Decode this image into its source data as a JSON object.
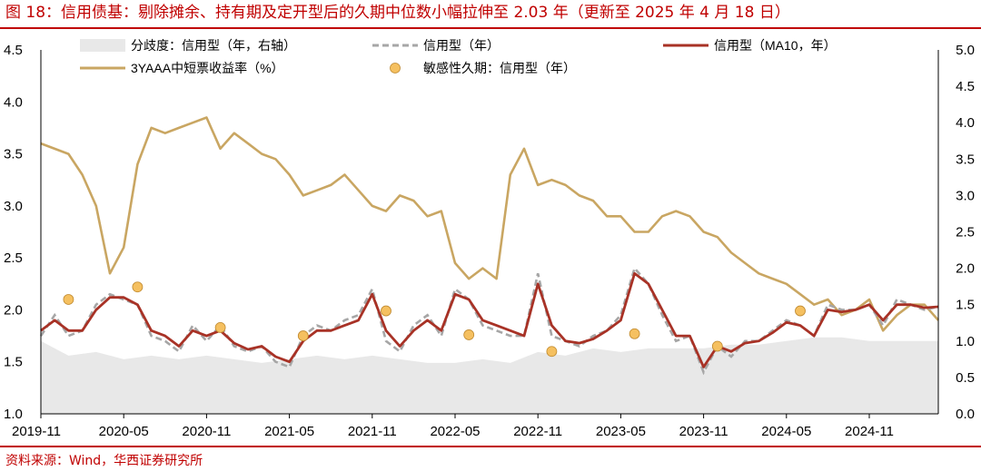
{
  "title": "图 18：信用债基：剔除摊余、持有期及定开型后的久期中位数小幅拉伸至 2.03 年（更新至 2025 年 4 月 18 日）",
  "source": "资料来源：Wind，华西证券研究所",
  "colors": {
    "title_red": "#c00000",
    "dispersion_fill": "#e8e8e8",
    "credit_dashed": "#a6a6a6",
    "credit_ma10": "#a83226",
    "yield_line": "#c9a662",
    "sensitivity_dot": "#f5c060"
  },
  "chart_data": {
    "type": "line",
    "x_ticks": [
      "2019-11",
      "2020-05",
      "2020-11",
      "2021-05",
      "2021-11",
      "2022-05",
      "2022-11",
      "2023-05",
      "2023-11",
      "2024-05",
      "2024-11"
    ],
    "x_range": [
      "2019-11",
      "2025-04"
    ],
    "ylim_left": [
      1.0,
      4.5
    ],
    "yticks_left": [
      "1.0",
      "1.5",
      "2.0",
      "2.5",
      "3.0",
      "3.5",
      "4.0",
      "4.5"
    ],
    "ylim_right": [
      0.0,
      5.0
    ],
    "yticks_right": [
      "0.0",
      "0.5",
      "1.0",
      "1.5",
      "2.0",
      "2.5",
      "3.0",
      "3.5",
      "4.0",
      "4.5",
      "5.0"
    ],
    "legend": [
      "分歧度：信用型（年，右轴）",
      "信用型（年）",
      "信用型（MA10，年）",
      "3YAAA中短票收益率（%）",
      "敏感性久期：信用型（年）"
    ],
    "series": [
      {
        "name": "3YAAA中短票收益率（%）",
        "axis": "left",
        "style": "line",
        "x": [
          "2019-11",
          "2020-01",
          "2020-02",
          "2020-03",
          "2020-04",
          "2020-05",
          "2020-06",
          "2020-07",
          "2020-08",
          "2020-09",
          "2020-10",
          "2020-11",
          "2020-12",
          "2021-01",
          "2021-02",
          "2021-03",
          "2021-04",
          "2021-05",
          "2021-06",
          "2021-07",
          "2021-08",
          "2021-09",
          "2021-10",
          "2021-11",
          "2021-12",
          "2022-01",
          "2022-02",
          "2022-03",
          "2022-04",
          "2022-05",
          "2022-06",
          "2022-07",
          "2022-08",
          "2022-09",
          "2022-10",
          "2022-11",
          "2022-12",
          "2023-01",
          "2023-02",
          "2023-03",
          "2023-04",
          "2023-05",
          "2023-06",
          "2023-07",
          "2023-08",
          "2023-09",
          "2023-10",
          "2023-11",
          "2023-12",
          "2024-01",
          "2024-02",
          "2024-03",
          "2024-04",
          "2024-05",
          "2024-06",
          "2024-07",
          "2024-08",
          "2024-09",
          "2024-10",
          "2024-11",
          "2024-12",
          "2025-01",
          "2025-02",
          "2025-03",
          "2025-04"
        ],
        "values": [
          3.6,
          3.5,
          3.3,
          3.0,
          2.35,
          2.6,
          3.4,
          3.75,
          3.7,
          3.75,
          3.8,
          3.85,
          3.55,
          3.7,
          3.6,
          3.5,
          3.45,
          3.3,
          3.1,
          3.15,
          3.2,
          3.3,
          3.15,
          3.0,
          2.95,
          3.1,
          3.05,
          2.9,
          2.95,
          2.45,
          2.3,
          2.4,
          2.3,
          3.3,
          3.55,
          3.2,
          3.25,
          3.2,
          3.1,
          3.05,
          2.9,
          2.9,
          2.75,
          2.75,
          2.9,
          2.95,
          2.9,
          2.75,
          2.7,
          2.55,
          2.45,
          2.35,
          2.3,
          2.25,
          2.15,
          2.05,
          2.1,
          1.95,
          2.0,
          2.1,
          1.8,
          1.95,
          2.05,
          2.05,
          1.9
        ]
      },
      {
        "name": "信用型（年）",
        "axis": "left",
        "style": "dashed",
        "x": [
          "2019-11",
          "2019-12",
          "2020-01",
          "2020-02",
          "2020-03",
          "2020-04",
          "2020-05",
          "2020-06",
          "2020-07",
          "2020-08",
          "2020-09",
          "2020-10",
          "2020-11",
          "2020-12",
          "2021-01",
          "2021-02",
          "2021-03",
          "2021-04",
          "2021-05",
          "2021-06",
          "2021-07",
          "2021-08",
          "2021-09",
          "2021-10",
          "2021-11",
          "2021-12",
          "2022-01",
          "2022-02",
          "2022-03",
          "2022-04",
          "2022-05",
          "2022-06",
          "2022-07",
          "2022-08",
          "2022-09",
          "2022-10",
          "2022-11",
          "2022-12",
          "2023-01",
          "2023-02",
          "2023-03",
          "2023-04",
          "2023-05",
          "2023-06",
          "2023-07",
          "2023-08",
          "2023-09",
          "2023-10",
          "2023-11",
          "2023-12",
          "2024-01",
          "2024-02",
          "2024-03",
          "2024-04",
          "2024-05",
          "2024-06",
          "2024-07",
          "2024-08",
          "2024-09",
          "2024-10",
          "2024-11",
          "2024-12",
          "2025-01",
          "2025-02",
          "2025-03",
          "2025-04"
        ],
        "values": [
          1.75,
          1.95,
          1.75,
          1.8,
          2.05,
          2.15,
          2.1,
          2.05,
          1.75,
          1.7,
          1.6,
          1.85,
          1.7,
          1.85,
          1.65,
          1.6,
          1.65,
          1.5,
          1.45,
          1.75,
          1.85,
          1.8,
          1.9,
          1.95,
          2.2,
          1.7,
          1.6,
          1.85,
          1.95,
          1.75,
          2.2,
          2.1,
          1.85,
          1.8,
          1.75,
          1.75,
          2.35,
          1.75,
          1.7,
          1.65,
          1.75,
          1.8,
          1.95,
          2.4,
          2.25,
          1.95,
          1.7,
          1.75,
          1.4,
          1.65,
          1.55,
          1.7,
          1.7,
          1.8,
          1.9,
          1.85,
          1.75,
          2.05,
          2.0,
          2.0,
          2.05,
          1.85,
          2.1,
          2.05,
          2.0,
          2.03
        ]
      },
      {
        "name": "信用型（MA10，年）",
        "axis": "left",
        "style": "line",
        "x": [
          "2019-11",
          "2019-12",
          "2020-01",
          "2020-02",
          "2020-03",
          "2020-04",
          "2020-05",
          "2020-06",
          "2020-07",
          "2020-08",
          "2020-09",
          "2020-10",
          "2020-11",
          "2020-12",
          "2021-01",
          "2021-02",
          "2021-03",
          "2021-04",
          "2021-05",
          "2021-06",
          "2021-07",
          "2021-08",
          "2021-09",
          "2021-10",
          "2021-11",
          "2021-12",
          "2022-01",
          "2022-02",
          "2022-03",
          "2022-04",
          "2022-05",
          "2022-06",
          "2022-07",
          "2022-08",
          "2022-09",
          "2022-10",
          "2022-11",
          "2022-12",
          "2023-01",
          "2023-02",
          "2023-03",
          "2023-04",
          "2023-05",
          "2023-06",
          "2023-07",
          "2023-08",
          "2023-09",
          "2023-10",
          "2023-11",
          "2023-12",
          "2024-01",
          "2024-02",
          "2024-03",
          "2024-04",
          "2024-05",
          "2024-06",
          "2024-07",
          "2024-08",
          "2024-09",
          "2024-10",
          "2024-11",
          "2024-12",
          "2025-01",
          "2025-02",
          "2025-03",
          "2025-04"
        ],
        "values": [
          1.8,
          1.9,
          1.8,
          1.8,
          2.0,
          2.12,
          2.12,
          2.05,
          1.8,
          1.75,
          1.65,
          1.8,
          1.75,
          1.8,
          1.68,
          1.62,
          1.65,
          1.55,
          1.5,
          1.7,
          1.8,
          1.8,
          1.85,
          1.9,
          2.15,
          1.8,
          1.65,
          1.8,
          1.9,
          1.8,
          2.15,
          2.1,
          1.9,
          1.85,
          1.8,
          1.75,
          2.25,
          1.85,
          1.7,
          1.68,
          1.72,
          1.8,
          1.9,
          2.35,
          2.25,
          2.0,
          1.75,
          1.75,
          1.45,
          1.65,
          1.6,
          1.68,
          1.7,
          1.78,
          1.88,
          1.85,
          1.75,
          2.0,
          1.98,
          2.0,
          2.05,
          1.9,
          2.05,
          2.05,
          2.02,
          2.03
        ]
      },
      {
        "name": "分歧度：信用型（年，右轴）",
        "axis": "right",
        "style": "area",
        "x": [
          "2019-11",
          "2020-01",
          "2020-03",
          "2020-05",
          "2020-07",
          "2020-09",
          "2020-11",
          "2021-01",
          "2021-03",
          "2021-05",
          "2021-07",
          "2021-09",
          "2021-11",
          "2022-01",
          "2022-03",
          "2022-05",
          "2022-07",
          "2022-09",
          "2022-11",
          "2023-01",
          "2023-03",
          "2023-05",
          "2023-07",
          "2023-09",
          "2023-11",
          "2024-01",
          "2024-03",
          "2024-05",
          "2024-07",
          "2024-09",
          "2024-11",
          "2025-01",
          "2025-03",
          "2025-04"
        ],
        "values": [
          1.0,
          0.8,
          0.85,
          0.75,
          0.8,
          0.75,
          0.8,
          0.75,
          0.7,
          0.75,
          0.8,
          0.75,
          0.8,
          0.75,
          0.7,
          0.7,
          0.75,
          0.7,
          0.85,
          0.8,
          0.9,
          0.85,
          0.9,
          0.9,
          0.9,
          0.95,
          0.95,
          1.0,
          1.05,
          1.05,
          1.0,
          1.0,
          1.0,
          1.0
        ]
      },
      {
        "name": "敏感性久期：信用型（年）",
        "axis": "left",
        "style": "scatter",
        "x": [
          "2020-01",
          "2020-06",
          "2020-12",
          "2021-06",
          "2021-12",
          "2022-06",
          "2022-12",
          "2023-06",
          "2023-12",
          "2024-06"
        ],
        "values": [
          2.1,
          2.22,
          1.83,
          1.75,
          1.99,
          1.76,
          1.6,
          1.77,
          1.65,
          1.99
        ]
      }
    ]
  }
}
